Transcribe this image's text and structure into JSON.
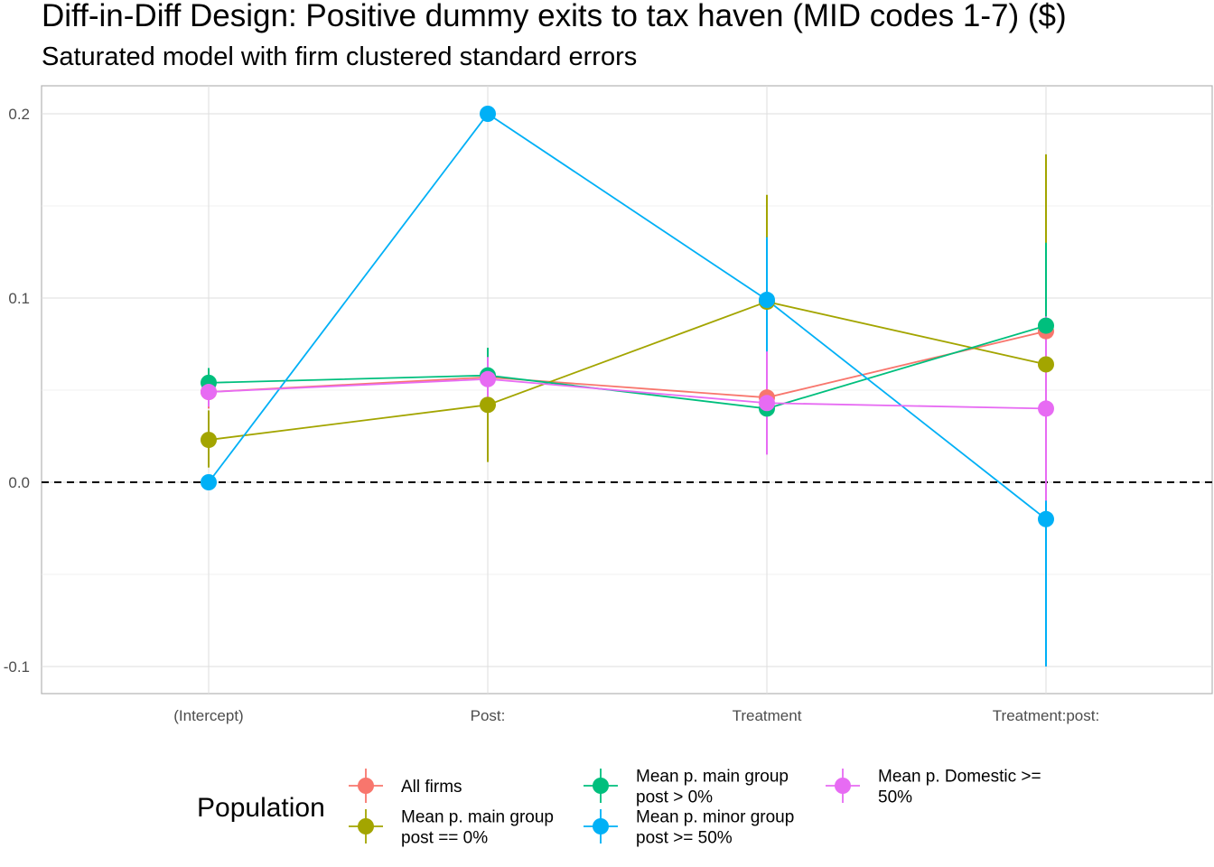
{
  "title": "Diff-in-Diff Design: Positive dummy exits to tax haven (MID codes 1-7)  ($)",
  "subtitle": "Saturated model with firm clustered standard errors",
  "chart_data": {
    "type": "line",
    "categories": [
      "(Intercept)",
      "Post:",
      "Treatment",
      "Treatment:post:"
    ],
    "ylim": [
      -0.115,
      0.215
    ],
    "yticks": [
      -0.1,
      0.0,
      0.1,
      0.2
    ],
    "ytick_labels": [
      "-0.1",
      "0.0",
      "0.1",
      "0.2"
    ],
    "grid": true,
    "reference_line": {
      "y": 0.0,
      "style": "dashed"
    },
    "legend": {
      "title": "Population",
      "position": "bottom"
    },
    "series": [
      {
        "name": "All firms",
        "color": "#F8766D",
        "values": [
          0.049,
          0.057,
          0.046,
          0.082
        ],
        "lower": [
          0.04,
          0.048,
          0.03,
          0.06
        ],
        "upper": [
          0.058,
          0.066,
          0.062,
          0.104
        ]
      },
      {
        "name": "Mean p. main group\npost == 0%",
        "color": "#A3A500",
        "values": [
          0.023,
          0.042,
          0.098,
          0.064
        ],
        "lower": [
          0.008,
          0.011,
          0.04,
          -0.05
        ],
        "upper": [
          0.039,
          0.072,
          0.156,
          0.178
        ]
      },
      {
        "name": "Mean p. main group\npost > 0%",
        "color": "#00BF7D",
        "values": [
          0.054,
          0.058,
          0.04,
          0.085
        ],
        "lower": [
          0.046,
          0.045,
          0.025,
          0.04
        ],
        "upper": [
          0.062,
          0.073,
          0.055,
          0.13
        ]
      },
      {
        "name": "Mean p. minor group\npost >= 50%",
        "color": "#00B0F6",
        "values": [
          0.0,
          0.2,
          0.099,
          -0.02
        ],
        "lower": [
          0.0,
          0.2,
          0.07,
          -0.1
        ],
        "upper": [
          0.0,
          0.2,
          0.133,
          0.06
        ]
      },
      {
        "name": "Mean p. Domestic >=\n50%",
        "color": "#E76BF3",
        "values": [
          0.049,
          0.056,
          0.043,
          0.04
        ],
        "lower": [
          0.041,
          0.044,
          0.015,
          -0.01
        ],
        "upper": [
          0.057,
          0.068,
          0.071,
          0.09
        ]
      }
    ]
  }
}
